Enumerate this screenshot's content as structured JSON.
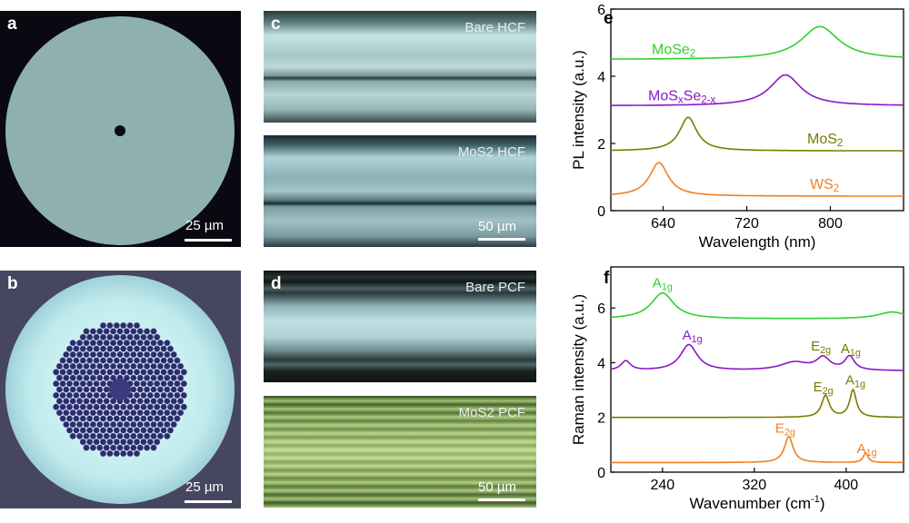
{
  "panels": {
    "a": {
      "label": "a",
      "scale": "25 µm"
    },
    "b": {
      "label": "b",
      "scale": "25 µm"
    },
    "c": {
      "label": "c",
      "top_text": "Bare HCF",
      "bottom_text": "MoS2 HCF",
      "scale": "50 µm"
    },
    "d": {
      "label": "d",
      "top_text": "Bare PCF",
      "bottom_text": "MoS2 PCF",
      "scale": "50 µm"
    }
  },
  "chart_data": [
    {
      "panel": "e",
      "type": "line",
      "xlabel": "Wavelength (nm)",
      "ylabel": "PL intensity (a.u.)",
      "xlim": [
        590,
        870
      ],
      "ylim": [
        0,
        6
      ],
      "xticks": [
        640,
        720,
        800
      ],
      "yticks": [
        0,
        2,
        4,
        6
      ],
      "series": [
        {
          "name": "MoSe2",
          "color": "#2fd02f",
          "baseline": 4.5,
          "peaks": [
            {
              "x": 790,
              "h": 0.98,
              "w": 22
            }
          ],
          "label": "MoSe2"
        },
        {
          "name": "MoSxSe2-x",
          "color": "#8a18c8",
          "baseline": 3.12,
          "peaks": [
            {
              "x": 757,
              "h": 0.92,
              "w": 18
            }
          ],
          "label": "MoSxSe2-x"
        },
        {
          "name": "MoS2",
          "color": "#7a7a00",
          "baseline": 1.78,
          "peaks": [
            {
              "x": 664,
              "h": 1.0,
              "w": 10
            }
          ],
          "label": "MoS2"
        },
        {
          "name": "WS2",
          "color": "#f08020",
          "baseline": 0.43,
          "peaks": [
            {
              "x": 636,
              "h": 1.0,
              "w": 11
            }
          ],
          "label": "WS2"
        }
      ]
    },
    {
      "panel": "f",
      "type": "line",
      "xlabel": "Wavenumber (cm-1)",
      "ylabel": "Raman intensity (a.u.)",
      "xlim": [
        195,
        450
      ],
      "ylim": [
        0,
        7.5
      ],
      "xticks": [
        240,
        320,
        400
      ],
      "yticks": [
        0,
        2,
        4,
        6
      ],
      "series": [
        {
          "color": "#2fd02f",
          "baseline": 5.6,
          "peaks": [
            {
              "x": 240,
              "h": 0.95,
              "w": 12
            },
            {
              "x": 440,
              "h": 0.25,
              "w": 15
            }
          ]
        },
        {
          "color": "#8a18c8",
          "baseline": 3.7,
          "peaks": [
            {
              "x": 208,
              "h": 0.35,
              "w": 5
            },
            {
              "x": 263,
              "h": 0.95,
              "w": 9
            },
            {
              "x": 355,
              "h": 0.3,
              "w": 15
            },
            {
              "x": 380,
              "h": 0.45,
              "w": 7
            },
            {
              "x": 403,
              "h": 0.5,
              "w": 5
            }
          ]
        },
        {
          "color": "#7a7a00",
          "baseline": 2.0,
          "peaks": [
            {
              "x": 382,
              "h": 0.8,
              "w": 4
            },
            {
              "x": 406,
              "h": 1.0,
              "w": 3.5
            }
          ]
        },
        {
          "color": "#f08020",
          "baseline": 0.35,
          "peaks": [
            {
              "x": 350,
              "h": 0.95,
              "w": 4.5
            },
            {
              "x": 417,
              "h": 0.35,
              "w": 2.5
            }
          ]
        }
      ],
      "annotations": [
        {
          "text": "A1g",
          "x": 240,
          "y": 6.75,
          "color": "#2fd02f"
        },
        {
          "text": "A1g",
          "x": 266,
          "y": 4.85,
          "color": "#8a18c8"
        },
        {
          "text": "E2g",
          "x": 378,
          "y": 4.45,
          "color": "#7a7a00"
        },
        {
          "text": "A1g",
          "x": 404,
          "y": 4.35,
          "color": "#7a7a00"
        },
        {
          "text": "E2g",
          "x": 380,
          "y": 2.95,
          "color": "#7a7a00"
        },
        {
          "text": "A1g",
          "x": 408,
          "y": 3.2,
          "color": "#7a7a00"
        },
        {
          "text": "E2g",
          "x": 347,
          "y": 1.45,
          "color": "#f08020"
        },
        {
          "text": "A1g",
          "x": 418,
          "y": 0.7,
          "color": "#f08020"
        }
      ]
    }
  ]
}
